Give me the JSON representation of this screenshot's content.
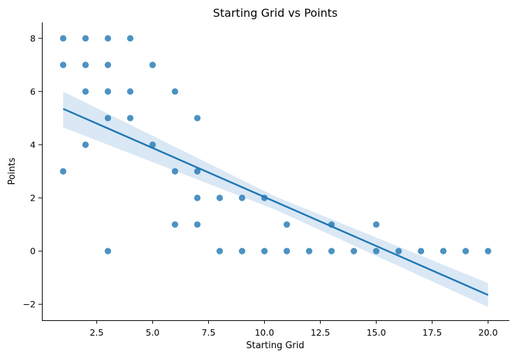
{
  "chart_data": {
    "type": "scatter",
    "title": "Starting Grid vs Points",
    "xlabel": "Starting Grid",
    "ylabel": "Points",
    "xlim": [
      0.05,
      20.95
    ],
    "ylim": [
      -2.6,
      8.6
    ],
    "x_ticks": [
      2.5,
      5.0,
      7.5,
      10.0,
      12.5,
      15.0,
      17.5,
      20.0
    ],
    "x_tick_labels": [
      "2.5",
      "5.0",
      "7.5",
      "10.0",
      "12.5",
      "15.0",
      "17.5",
      "20.0"
    ],
    "y_ticks": [
      -2,
      0,
      2,
      4,
      6,
      8
    ],
    "y_tick_labels": [
      "−2",
      "0",
      "2",
      "4",
      "6",
      "8"
    ],
    "grid": false,
    "legend": "none",
    "colors": {
      "points": "#1f77b4",
      "line": "#1f77b4",
      "band": "#c6dbef"
    },
    "points": [
      [
        1,
        8
      ],
      [
        1,
        7
      ],
      [
        1,
        3
      ],
      [
        2,
        8
      ],
      [
        2,
        7
      ],
      [
        2,
        6
      ],
      [
        2,
        4
      ],
      [
        3,
        8
      ],
      [
        3,
        7
      ],
      [
        3,
        6
      ],
      [
        3,
        5
      ],
      [
        3,
        0
      ],
      [
        4,
        8
      ],
      [
        4,
        6
      ],
      [
        4,
        5
      ],
      [
        5,
        7
      ],
      [
        5,
        4
      ],
      [
        6,
        6
      ],
      [
        6,
        3
      ],
      [
        6,
        1
      ],
      [
        7,
        5
      ],
      [
        7,
        3
      ],
      [
        7,
        2
      ],
      [
        7,
        1
      ],
      [
        8,
        2
      ],
      [
        8,
        0
      ],
      [
        9,
        2
      ],
      [
        9,
        0
      ],
      [
        10,
        2
      ],
      [
        10,
        0
      ],
      [
        11,
        1
      ],
      [
        11,
        0
      ],
      [
        12,
        0
      ],
      [
        13,
        1
      ],
      [
        13,
        0
      ],
      [
        14,
        0
      ],
      [
        15,
        1
      ],
      [
        15,
        0
      ],
      [
        16,
        0
      ],
      [
        17,
        0
      ],
      [
        18,
        0
      ],
      [
        19,
        0
      ],
      [
        20,
        0
      ]
    ],
    "regression": {
      "x": [
        1,
        20
      ],
      "y": [
        5.35,
        -1.65
      ],
      "band": [
        {
          "x": 1,
          "lower": 4.65,
          "upper": 6.0
        },
        {
          "x": 10.5,
          "lower": 1.55,
          "upper": 2.05
        },
        {
          "x": 20,
          "lower": -2.1,
          "upper": -1.2
        }
      ]
    }
  }
}
